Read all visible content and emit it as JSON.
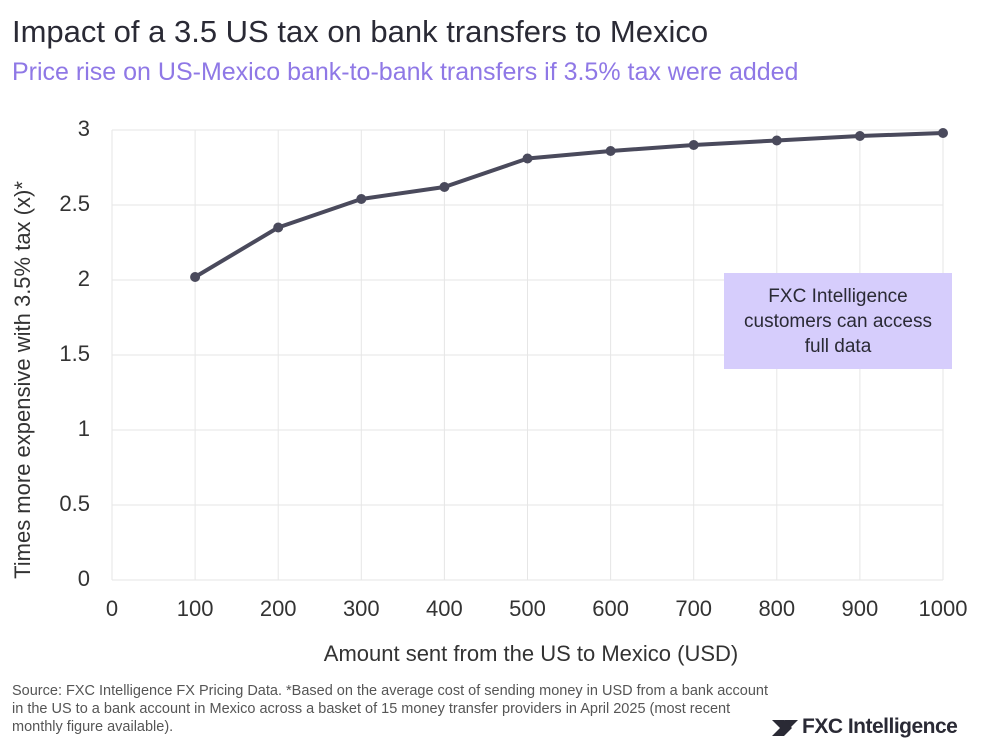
{
  "chart_data": {
    "type": "line",
    "title": "Impact of a 3.5 US tax on bank transfers to Mexico",
    "subtitle": "Price rise on US-Mexico bank-to-bank transfers if 3.5% tax were added",
    "x_label": "Amount sent from the US to Mexico (USD)",
    "y_label": "Times more expensive with 3.5% tax (x)*",
    "x": [
      100,
      200,
      300,
      400,
      500,
      600,
      700,
      800,
      900,
      1000
    ],
    "series": [
      {
        "name": "Times more expensive",
        "color": "#4a4a5c",
        "values": [
          2.02,
          2.35,
          2.54,
          2.62,
          2.81,
          2.86,
          2.9,
          2.93,
          2.96,
          2.98
        ]
      }
    ],
    "xlim": [
      0,
      1000
    ],
    "xticks": [
      0,
      100,
      200,
      300,
      400,
      500,
      600,
      700,
      800,
      900,
      1000
    ],
    "ylim": [
      0,
      3
    ],
    "yticks": [
      0,
      0.5,
      1,
      1.5,
      2,
      2.5,
      3
    ],
    "grid": true,
    "annotation": "FXC Intelligence customers can access full data",
    "source": "Source: FXC Intelligence FX Pricing Data. *Based on the average cost of sending money in USD from a bank account in the US to a bank account in Mexico across a basket of 15 money transfer providers in April 2025 (most recent monthly figure available).",
    "brand": "FXC Intelligence"
  }
}
